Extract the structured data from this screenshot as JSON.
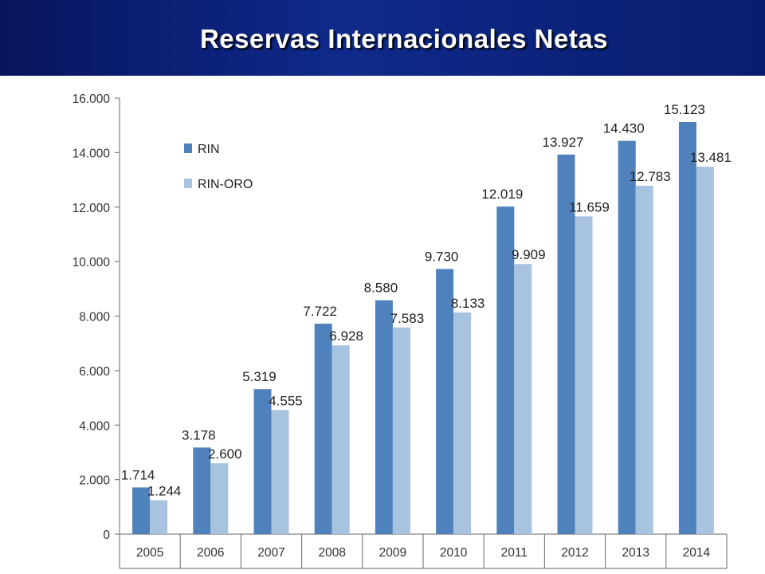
{
  "slide": {
    "title": "Reservas Internacionales Netas"
  },
  "colors": {
    "header": "#0a1c6e",
    "rin": "#4f81bd",
    "rin_oro": "#a7c3df",
    "title_text": "#ffffff"
  },
  "chart_data": {
    "type": "bar",
    "title": "",
    "xlabel": "",
    "ylabel": "",
    "categories": [
      "2005",
      "2006",
      "2007",
      "2008",
      "2009",
      "2010",
      "2011",
      "2012",
      "2013",
      "2014"
    ],
    "series": [
      {
        "name": "RIN",
        "values": [
          1714,
          3178,
          5319,
          7722,
          8580,
          9730,
          12019,
          13927,
          14430,
          15123
        ],
        "labels": [
          "1.714",
          "3.178",
          "5.319",
          "7.722",
          "8.580",
          "9.730",
          "12.019",
          "13.927",
          "14.430",
          "15.123"
        ]
      },
      {
        "name": "RIN-ORO",
        "values": [
          1244,
          2600,
          4555,
          6928,
          7583,
          8133,
          9909,
          11659,
          12783,
          13481
        ],
        "labels": [
          "1.244",
          "2.600",
          "4.555",
          "6.928",
          "7.583",
          "8.133",
          "9.909",
          "11.659",
          "12.783",
          "13.481"
        ]
      }
    ],
    "ylim": [
      0,
      16000
    ],
    "yticks": [
      0,
      2000,
      4000,
      6000,
      8000,
      10000,
      12000,
      14000,
      16000
    ],
    "ytick_labels": [
      "0",
      "2.000",
      "4.000",
      "6.000",
      "8.000",
      "10.000",
      "12.000",
      "14.000",
      "16.000"
    ],
    "grid": false,
    "legend_position": "top-left"
  }
}
